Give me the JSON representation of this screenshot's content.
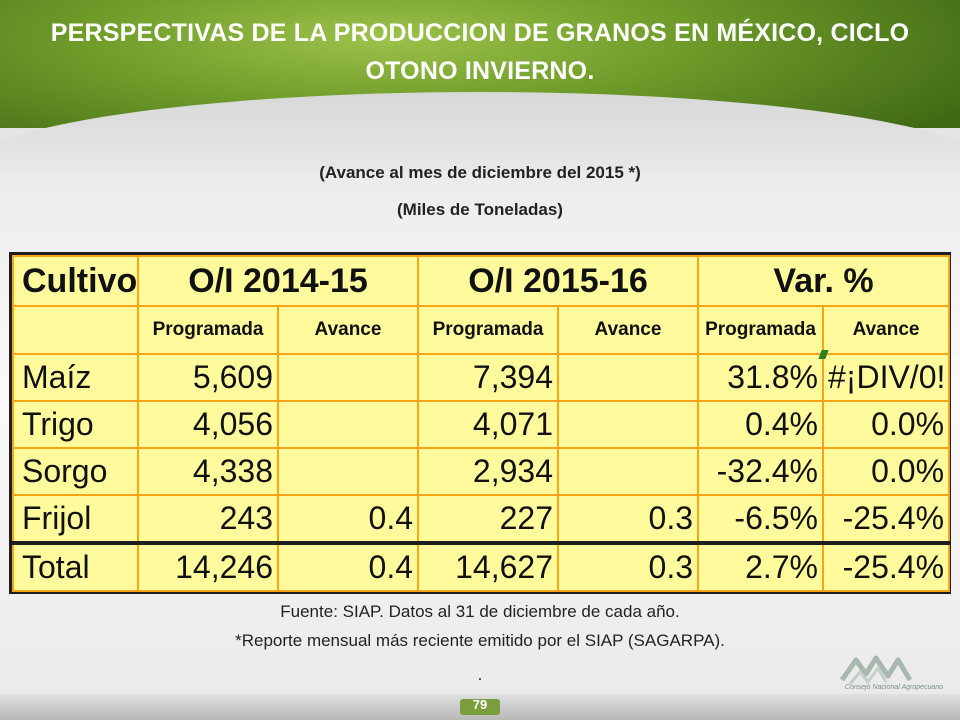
{
  "header": {
    "title_line1": "PERSPECTIVAS DE LA PRODUCCION DE GRANOS EN MÉXICO,  CICLO",
    "title_line2": "OTONO INVIERNO."
  },
  "subtitles": {
    "line1": "(Avance al mes de diciembre del 2015 *)",
    "line2": "(Miles de Toneladas)"
  },
  "table": {
    "header_row1": [
      "Cultivo",
      "O/I 2014-15",
      "O/I 2015-16",
      "Var. %"
    ],
    "header_row2": [
      "Programada",
      "Avance",
      "Programada",
      "Avance",
      "Programada",
      "Avance"
    ],
    "rows": [
      {
        "cultivo": "Maíz",
        "p1415": "5,609",
        "a1415": "",
        "p1516": "7,394",
        "a1516": "",
        "vp": "31.8%",
        "va": "#¡DIV/0!"
      },
      {
        "cultivo": "Trigo",
        "p1415": "4,056",
        "a1415": "",
        "p1516": "4,071",
        "a1516": "",
        "vp": "0.4%",
        "va": "0.0%"
      },
      {
        "cultivo": "Sorgo",
        "p1415": "4,338",
        "a1415": "",
        "p1516": "2,934",
        "a1516": "",
        "vp": "-32.4%",
        "va": "0.0%"
      },
      {
        "cultivo": "Frijol",
        "p1415": "243",
        "a1415": "0.4",
        "p1516": "227",
        "a1516": "0.3",
        "vp": "-6.5%",
        "va": "-25.4%"
      }
    ],
    "total": {
      "cultivo": "Total",
      "p1415": "14,246",
      "a1415": "0.4",
      "p1516": "14,627",
      "a1516": "0.3",
      "vp": "2.7%",
      "va": "-25.4%"
    }
  },
  "footer": {
    "source": "Fuente: SIAP. Datos al 31 de diciembre de cada año.",
    "note": "*Reporte mensual más reciente emitido por el SIAP (SAGARPA).",
    "dot": ".",
    "page_number": "79",
    "logo_text": "Consejo Nacional Agropecuario"
  },
  "colors": {
    "header_green": "#6f9b2a",
    "table_fill": "#fffb9c",
    "table_lines": "#f7a517"
  }
}
